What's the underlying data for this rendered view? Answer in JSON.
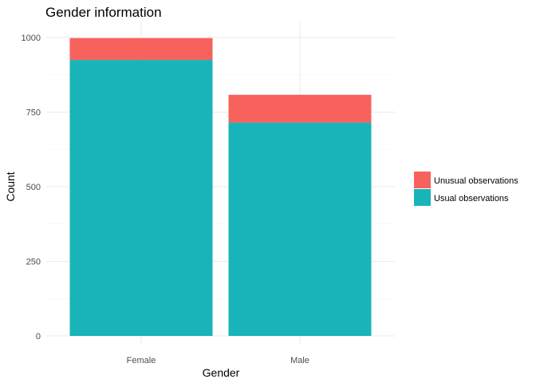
{
  "chart_data": {
    "type": "bar",
    "stacked": true,
    "title": "Gender information",
    "xlabel": "Gender",
    "ylabel": "Count",
    "categories": [
      "Female",
      "Male"
    ],
    "series": [
      {
        "name": "Usual observations",
        "values": [
          925,
          715
        ],
        "color": "#19b4b9"
      },
      {
        "name": "Unusual observations",
        "values": [
          73,
          93
        ],
        "color": "#f8625d"
      }
    ],
    "ylim": [
      0,
      1000
    ],
    "yticks": [
      0,
      250,
      500,
      750,
      1000
    ],
    "grid": true,
    "legend_position": "right",
    "legend_order": [
      "Unusual observations",
      "Usual observations"
    ]
  }
}
